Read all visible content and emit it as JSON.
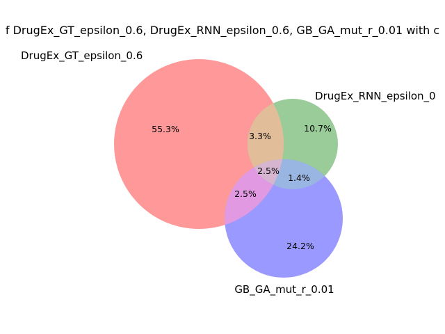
{
  "chart_data": {
    "type": "venn",
    "title": "f DrugEx_GT_epsilon_0.6, DrugEx_RNN_epsilon_0.6, GB_GA_mut_r_0.01 with c",
    "sets": [
      {
        "name": "DrugEx_GT_epsilon_0.6",
        "color": "#ff9999"
      },
      {
        "name": "DrugEx_RNN_epsilon_0",
        "color": "#99cc99"
      },
      {
        "name": "GB_GA_mut_r_0.01",
        "color": "#9999ff"
      }
    ],
    "regions": [
      {
        "sets": [
          "DrugEx_GT_epsilon_0.6"
        ],
        "label": "55.3%",
        "value": 55.3
      },
      {
        "sets": [
          "DrugEx_RNN_epsilon_0.6"
        ],
        "label": "10.7%",
        "value": 10.7
      },
      {
        "sets": [
          "GB_GA_mut_r_0.01"
        ],
        "label": "24.2%",
        "value": 24.2
      },
      {
        "sets": [
          "DrugEx_GT_epsilon_0.6",
          "DrugEx_RNN_epsilon_0.6"
        ],
        "label": "3.3%",
        "value": 3.3
      },
      {
        "sets": [
          "DrugEx_GT_epsilon_0.6",
          "GB_GA_mut_r_0.01"
        ],
        "label": "2.5%",
        "value": 2.5
      },
      {
        "sets": [
          "DrugEx_RNN_epsilon_0.6",
          "GB_GA_mut_r_0.01"
        ],
        "label": "1.4%",
        "value": 1.4
      },
      {
        "sets": [
          "DrugEx_GT_epsilon_0.6",
          "DrugEx_RNN_epsilon_0.6",
          "GB_GA_mut_r_0.01"
        ],
        "label": "2.5%",
        "value": 2.5
      }
    ],
    "region_colors": {
      "gt_rnn": "#e1bd99",
      "gt_ga": "#e199e1",
      "rnn_ga": "#99b5e1",
      "all": "#d5b5cf"
    }
  }
}
